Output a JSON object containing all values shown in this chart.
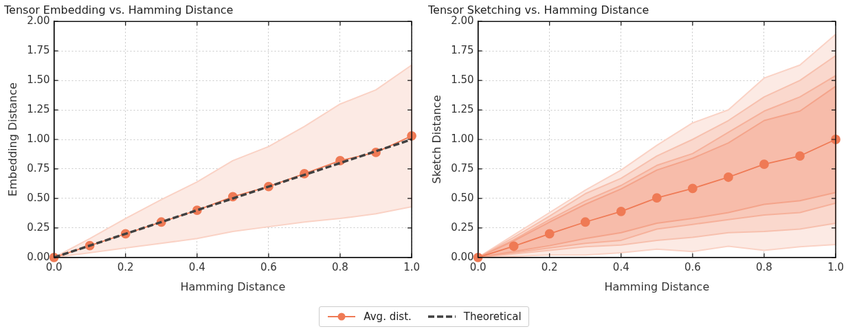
{
  "chart_data": [
    {
      "type": "line",
      "title": "Tensor Embedding vs. Hamming Distance",
      "xlabel": "Hamming Distance",
      "ylabel": "Embedding Distance",
      "x": [
        0,
        0.1,
        0.2,
        0.3,
        0.4,
        0.5,
        0.6,
        0.7,
        0.8,
        0.9,
        1.0
      ],
      "series": [
        {
          "name": "Avg. dist.",
          "color": "#ef7a55",
          "marker": "circle",
          "values": [
            0,
            0.1,
            0.2,
            0.3,
            0.4,
            0.515,
            0.6,
            0.71,
            0.82,
            0.89,
            1.03
          ],
          "lower": [
            0,
            0.04,
            0.08,
            0.12,
            0.16,
            0.22,
            0.26,
            0.3,
            0.33,
            0.37,
            0.43
          ],
          "upper": [
            0,
            0.16,
            0.33,
            0.49,
            0.64,
            0.82,
            0.94,
            1.11,
            1.3,
            1.42,
            1.63
          ]
        },
        {
          "name": "Theoretical",
          "color": "#404040",
          "marker": "none",
          "line_style": "dashed",
          "x": [
            0,
            1
          ],
          "values": [
            0,
            1
          ]
        }
      ],
      "xlim": [
        0,
        1
      ],
      "ylim": [
        0,
        2
      ],
      "xticks": [
        {
          "value": 0,
          "label": "0.0"
        },
        {
          "value": 0.2,
          "label": "0.2"
        },
        {
          "value": 0.4,
          "label": "0.4"
        },
        {
          "value": 0.6,
          "label": "0.6"
        },
        {
          "value": 0.8,
          "label": "0.8"
        },
        {
          "value": 1,
          "label": "1.0"
        }
      ],
      "yticks": [
        {
          "value": 0,
          "label": "0.00"
        },
        {
          "value": 0.25,
          "label": "0.25"
        },
        {
          "value": 0.5,
          "label": "0.50"
        },
        {
          "value": 0.75,
          "label": "0.75"
        },
        {
          "value": 1,
          "label": "1.00"
        },
        {
          "value": 1.25,
          "label": "1.25"
        },
        {
          "value": 1.5,
          "label": "1.50"
        },
        {
          "value": 1.75,
          "label": "1.75"
        },
        {
          "value": 2,
          "label": "2.00"
        }
      ],
      "grid": true,
      "legend": "bottom"
    },
    {
      "type": "line",
      "title": "Tensor Sketching vs. Hamming Distance",
      "xlabel": "Hamming Distance",
      "ylabel": "Sketch Distance",
      "x": [
        0,
        0.1,
        0.2,
        0.3,
        0.4,
        0.5,
        0.6,
        0.7,
        0.8,
        0.9,
        1.0
      ],
      "series": [
        {
          "name": "Avg. dist.",
          "color": "#ef7a55",
          "marker": "circle",
          "values": [
            0,
            0.095,
            0.2,
            0.3,
            0.39,
            0.505,
            0.585,
            0.68,
            0.79,
            0.86,
            1.0
          ],
          "lower": [
            0,
            0.01,
            0.02,
            0.02,
            0.04,
            0.07,
            0.05,
            0.095,
            0.06,
            0.09,
            0.11
          ],
          "upper": [
            0,
            0.19,
            0.38,
            0.57,
            0.74,
            0.95,
            1.14,
            1.25,
            1.52,
            1.63,
            1.89
          ]
        },
        {
          "color": "#ef7a55",
          "values": [
            null,
            null,
            null,
            null,
            null,
            null,
            null,
            null,
            null,
            null,
            null
          ],
          "lower": [
            0,
            0.03,
            0.06,
            0.09,
            0.105,
            0.145,
            0.17,
            0.21,
            0.22,
            0.24,
            0.29
          ],
          "upper": [
            0,
            0.17,
            0.35,
            0.54,
            0.67,
            0.86,
            1.0,
            1.16,
            1.36,
            1.5,
            1.71
          ]
        },
        {
          "color": "#ef7a55",
          "values": [
            null,
            null,
            null,
            null,
            null,
            null,
            null,
            null,
            null,
            null,
            null
          ],
          "lower": [
            0,
            0.04,
            0.08,
            0.12,
            0.145,
            0.24,
            0.28,
            0.32,
            0.36,
            0.38,
            0.46
          ],
          "upper": [
            0,
            0.15,
            0.32,
            0.48,
            0.61,
            0.78,
            0.88,
            1.06,
            1.24,
            1.36,
            1.54
          ]
        },
        {
          "color": "#ef7a55",
          "values": [
            null,
            null,
            null,
            null,
            null,
            null,
            null,
            null,
            null,
            null,
            null
          ],
          "lower": [
            0,
            0.05,
            0.1,
            0.16,
            0.21,
            0.29,
            0.33,
            0.38,
            0.45,
            0.48,
            0.55
          ],
          "upper": [
            0,
            0.14,
            0.3,
            0.45,
            0.58,
            0.74,
            0.84,
            0.97,
            1.16,
            1.24,
            1.45
          ]
        }
      ],
      "xlim": [
        0,
        1
      ],
      "ylim": [
        0,
        2
      ],
      "xticks": [
        {
          "value": 0,
          "label": "0.0"
        },
        {
          "value": 0.2,
          "label": "0.2"
        },
        {
          "value": 0.4,
          "label": "0.4"
        },
        {
          "value": 0.6,
          "label": "0.6"
        },
        {
          "value": 0.8,
          "label": "0.8"
        },
        {
          "value": 1,
          "label": "1.0"
        }
      ],
      "yticks": [
        {
          "value": 0,
          "label": "0.00"
        },
        {
          "value": 0.25,
          "label": "0.25"
        },
        {
          "value": 0.5,
          "label": "0.50"
        },
        {
          "value": 0.75,
          "label": "0.75"
        },
        {
          "value": 1,
          "label": "1.00"
        },
        {
          "value": 1.25,
          "label": "1.25"
        },
        {
          "value": 1.5,
          "label": "1.50"
        },
        {
          "value": 1.75,
          "label": "1.75"
        },
        {
          "value": 2,
          "label": "2.00"
        }
      ],
      "grid": true,
      "legend": "bottom"
    }
  ]
}
